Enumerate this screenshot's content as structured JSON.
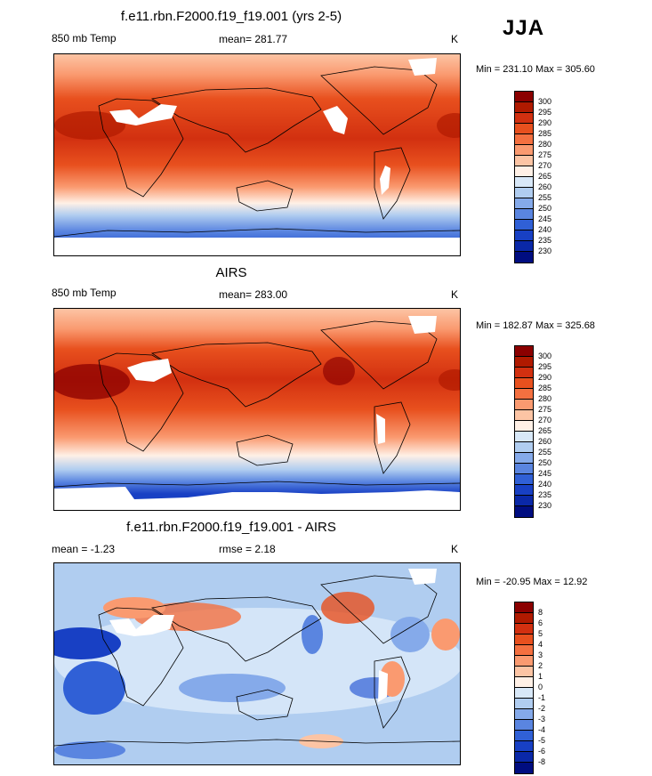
{
  "season": "JJA",
  "panels": [
    {
      "title": "f.e11.rbn.F2000.f19_f19.001 (yrs 2-5)",
      "left": "850 mb Temp",
      "center": "mean= 281.77",
      "right": "K",
      "minmax": "Min = 231.10 Max = 305.60"
    },
    {
      "title": "AIRS",
      "left": "850 mb Temp",
      "center": "mean= 283.00",
      "right": "K",
      "minmax": "Min = 182.87 Max = 325.68"
    },
    {
      "title": "f.e11.rbn.F2000.f19_f19.001 - AIRS",
      "left": "mean =  -1.23",
      "center": "rmse =   2.18",
      "right": "K",
      "minmax": "Min = -20.95 Max =  12.92"
    }
  ],
  "colorbars": {
    "temperature": {
      "labels": [
        "300",
        "295",
        "290",
        "285",
        "280",
        "275",
        "270",
        "265",
        "260",
        "255",
        "250",
        "245",
        "240",
        "235",
        "230"
      ],
      "colors": [
        "#8b0000",
        "#b01a00",
        "#d23010",
        "#e8501e",
        "#f47040",
        "#fa9a70",
        "#fcc4a4",
        "#fff0e6",
        "#d8e8f8",
        "#b0cdf0",
        "#85aaea",
        "#5a85e0",
        "#3060d6",
        "#1840c4",
        "#0a28a8",
        "#000d80"
      ]
    },
    "difference": {
      "labels": [
        "8",
        "6",
        "5",
        "4",
        "3",
        "2",
        "1",
        "0",
        "-1",
        "-2",
        "-3",
        "-4",
        "-5",
        "-6",
        "-8"
      ],
      "colors": [
        "#8b0000",
        "#b01a00",
        "#d23010",
        "#e8501e",
        "#f47040",
        "#fa9a70",
        "#fcc4a4",
        "#fff0e6",
        "#d8e8f8",
        "#b0cdf0",
        "#85aaea",
        "#5a85e0",
        "#3060d6",
        "#1840c4",
        "#0a28a8",
        "#000d80"
      ]
    }
  }
}
